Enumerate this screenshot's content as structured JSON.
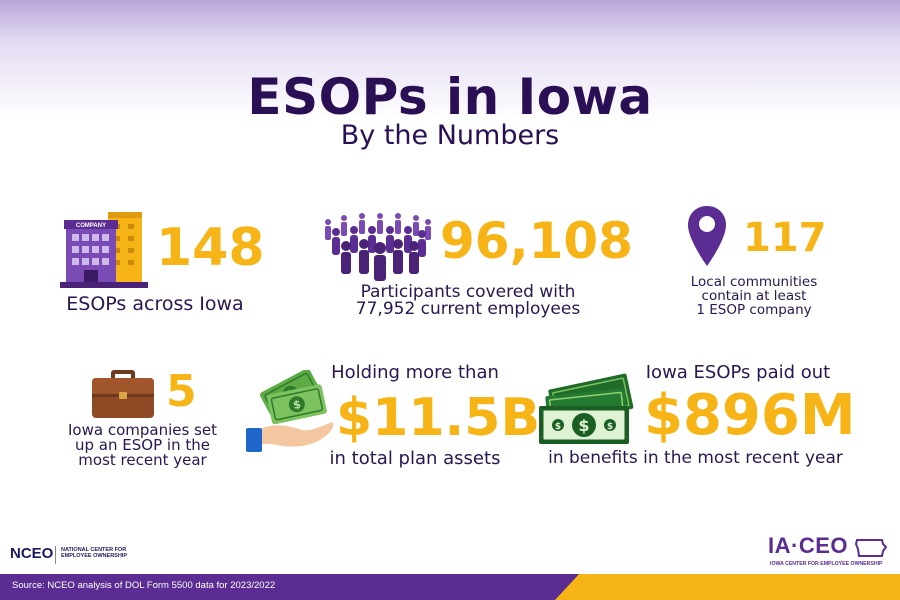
{
  "header": {
    "title": "ESOPs in Iowa",
    "subtitle": "By the Numbers"
  },
  "stats": {
    "esops": {
      "value": "148",
      "label": "ESOPs across Iowa",
      "icon": "company-building-icon"
    },
    "participants": {
      "value": "96,108",
      "label_line1": "Participants covered with",
      "label_line2": "77,952 current employees",
      "icon": "people-crowd-icon"
    },
    "communities": {
      "value": "117",
      "label_line1": "Local communities",
      "label_line2": "contain at least",
      "label_line3": "1 ESOP company",
      "icon": "location-pin-icon"
    },
    "new_esops": {
      "value": "5",
      "label_line1": "Iowa companies set",
      "label_line2": "up an ESOP in the",
      "label_line3": "most recent year",
      "icon": "briefcase-icon"
    },
    "assets": {
      "pre": "Holding more than",
      "value": "$11.5B",
      "post": "in total plan assets",
      "icon": "hand-money-icon"
    },
    "benefits": {
      "pre": "Iowa ESOPs paid out",
      "value": "$896M",
      "post": "in benefits in the most recent year",
      "icon": "cash-stack-icon"
    }
  },
  "footer": {
    "source": "Source: NCEO analysis of DOL Form 5500 data for 2023/2022",
    "nceo_logo": "NCEO",
    "nceo_sub_line1": "NATIONAL CENTER FOR",
    "nceo_sub_line2": "EMPLOYEE OWNERSHIP",
    "iaceo_logo": "IA·CEO",
    "iaceo_sub": "IOWA CENTER FOR EMPLOYEE OWNERSHIP"
  },
  "colors": {
    "purple": "#5b2c91",
    "dark_purple": "#2a0f55",
    "yellow": "#f7b416",
    "money_green": "#2f8a3c"
  }
}
